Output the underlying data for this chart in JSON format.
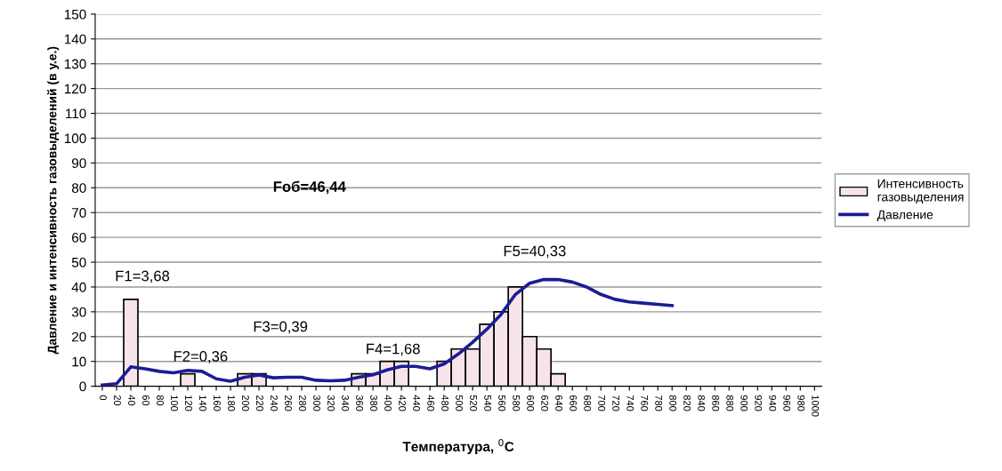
{
  "chart_data": {
    "type": "bar",
    "xlabel": "Температура, $^{0}$C",
    "ylabel": "Давление и интенсивность газовыделений (в у.е.)",
    "categories": [
      "0",
      "20",
      "40",
      "60",
      "80",
      "100",
      "120",
      "140",
      "160",
      "180",
      "200",
      "220",
      "240",
      "260",
      "280",
      "300",
      "320",
      "340",
      "360",
      "380",
      "400",
      "420",
      "440",
      "460",
      "480",
      "500",
      "520",
      "540",
      "560",
      "580",
      "600",
      "620",
      "640",
      "660",
      "680",
      "700",
      "720",
      "740",
      "760",
      "780",
      "800",
      "820",
      "840",
      "860",
      "880",
      "900",
      "920",
      "940",
      "960",
      "980",
      "1000"
    ],
    "series": [
      {
        "name": "Интенсивность\nгазовыделения",
        "color": "#f7e4ea",
        "values": [
          null,
          null,
          35,
          null,
          null,
          null,
          5,
          null,
          null,
          null,
          5,
          5,
          null,
          null,
          null,
          null,
          null,
          null,
          5,
          5,
          10,
          10,
          null,
          null,
          10,
          15,
          15,
          25,
          30,
          40,
          20,
          15,
          5,
          null,
          null,
          null,
          null,
          null,
          null,
          null,
          null,
          null,
          null,
          null,
          null,
          null,
          null,
          null,
          null,
          null,
          null
        ]
      },
      {
        "name": "Давление",
        "type": "line",
        "color": "#1c1c96",
        "values": [
          0.5,
          1,
          7.8,
          7,
          6,
          5.4,
          6.4,
          6,
          3,
          2,
          3.6,
          4.5,
          3.4,
          3.6,
          3.6,
          2.4,
          2.2,
          2.4,
          3.6,
          4.6,
          6.6,
          8,
          8,
          7,
          9,
          13,
          17.7,
          23,
          29,
          37,
          41.5,
          43,
          43,
          42,
          40,
          37,
          35,
          34,
          33.5,
          33,
          32.5,
          null,
          null,
          null,
          null,
          null,
          null,
          null,
          null,
          null,
          null
        ]
      }
    ],
    "ylim": [
      0,
      150
    ],
    "yticks": [
      0,
      10,
      20,
      30,
      40,
      50,
      60,
      70,
      80,
      90,
      100,
      110,
      120,
      130,
      140,
      150
    ],
    "grid": "y",
    "legend": "right",
    "marker": "none",
    "line_style": "solid",
    "annotations": [
      "F1=3,68",
      "F2=0,36",
      "F3=0,39",
      "F4=1,68",
      "F5=40,33",
      "Fоб=46,44"
    ]
  }
}
